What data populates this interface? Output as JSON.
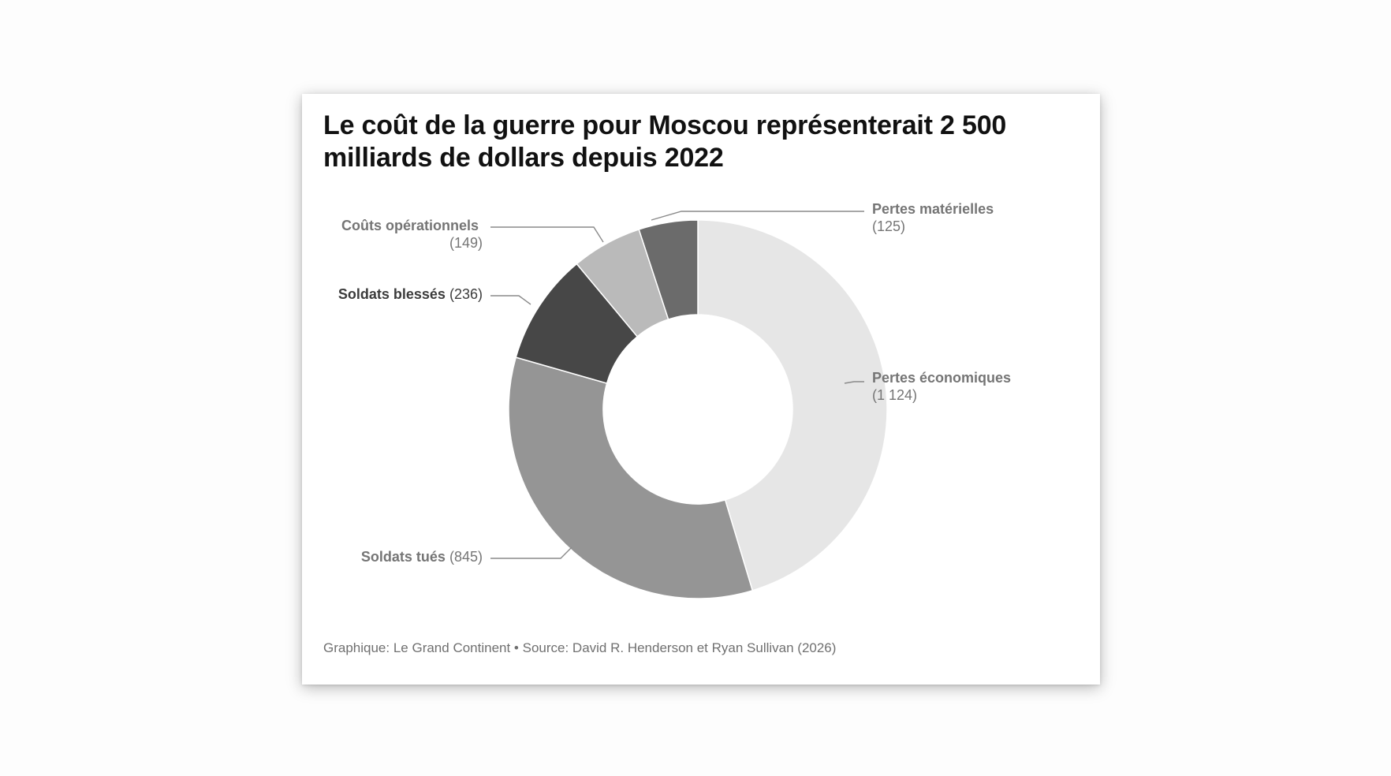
{
  "chart_data": {
    "type": "pie",
    "donut": true,
    "title": "Le coût de la guerre pour Moscou représenterait 2 500 milliards de dollars depuis 2022",
    "slices": [
      {
        "label": "Pertes économiques",
        "value": 1124,
        "value_text": "(1 124)",
        "color": "#e6e6e6"
      },
      {
        "label": "Soldats tués",
        "value": 845,
        "value_text": "(845)",
        "color": "#959595"
      },
      {
        "label": "Soldats blessés",
        "value": 236,
        "value_text": "(236)",
        "color": "#474747"
      },
      {
        "label": "Coûts opérationnels",
        "value": 149,
        "value_text": "(149)",
        "color": "#bababa"
      },
      {
        "label": "Pertes matérielles",
        "value": 125,
        "value_text": "(125)",
        "color": "#6b6b6b"
      }
    ]
  },
  "footer": "Graphique: Le Grand Continent • Source: David R. Henderson et Ryan Sullivan (2026)"
}
